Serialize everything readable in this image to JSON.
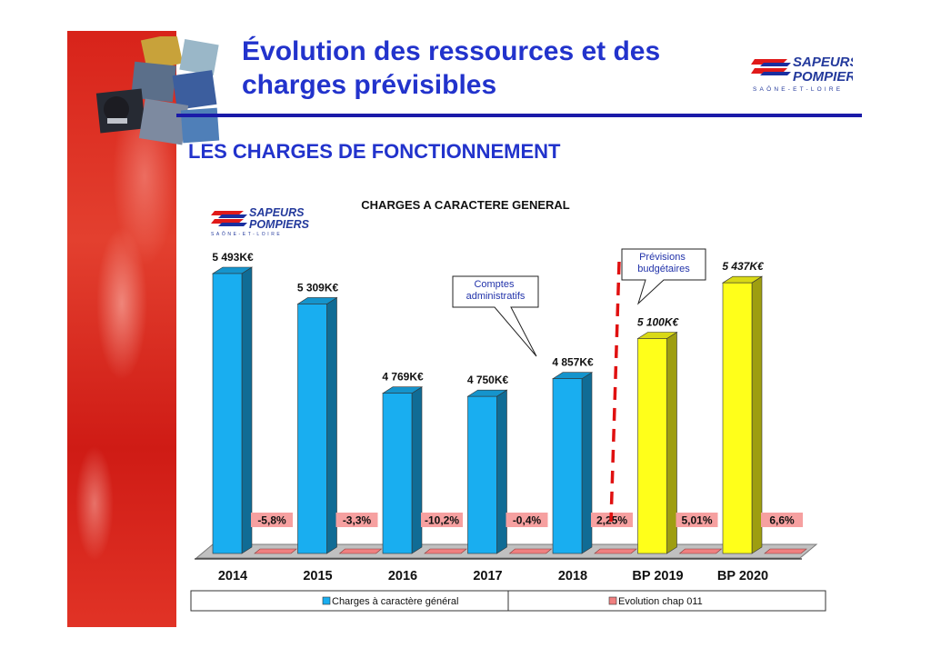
{
  "slide": {
    "title_line1": "Évolution des ressources et des",
    "title_line2": "charges prévisibles",
    "section": "LES CHARGES DE FONCTIONNEMENT"
  },
  "logo": {
    "line1": "SAPEURS",
    "line2": "POMPIERS",
    "line3": "SAÔNE-ET-LOIRE"
  },
  "colors": {
    "title": "#2233cc",
    "blue_bar": "#19aef0",
    "yellow_bar": "#ffff1a",
    "evolution": "#f08080",
    "divider": "#e01010"
  },
  "callouts": {
    "comptes": "Comptes administratifs",
    "previsions": "Prévisions budgétaires"
  },
  "chart_data": {
    "type": "bar",
    "title": "CHARGES A CARACTERE GENERAL",
    "categories": [
      "2014",
      "2015",
      "2016",
      "2017",
      "2018",
      "BP 2019",
      "BP 2020"
    ],
    "series": [
      {
        "name": "Charges à caractère général",
        "values": [
          5493,
          5309,
          4769,
          4750,
          4857,
          5100,
          5437
        ],
        "labels": [
          "5 493K€",
          "5 309K€",
          "4 769K€",
          "4 750K€",
          "4 857K€",
          "5 100K€",
          "5 437K€"
        ],
        "colors": [
          "#19aef0",
          "#19aef0",
          "#19aef0",
          "#19aef0",
          "#19aef0",
          "#ffff1a",
          "#ffff1a"
        ]
      },
      {
        "name": "Evolution chap 011",
        "values": [
          -5.8,
          -3.3,
          -10.2,
          -0.4,
          2.25,
          5.01,
          6.6
        ],
        "labels": [
          "-5,8%",
          "-3,3%",
          "-10,2%",
          "-0,4%",
          "2,25%",
          "5,01%",
          "6,6%"
        ]
      }
    ],
    "ylim": [
      3800,
      5600
    ],
    "grid": false,
    "legend_position": "bottom"
  }
}
